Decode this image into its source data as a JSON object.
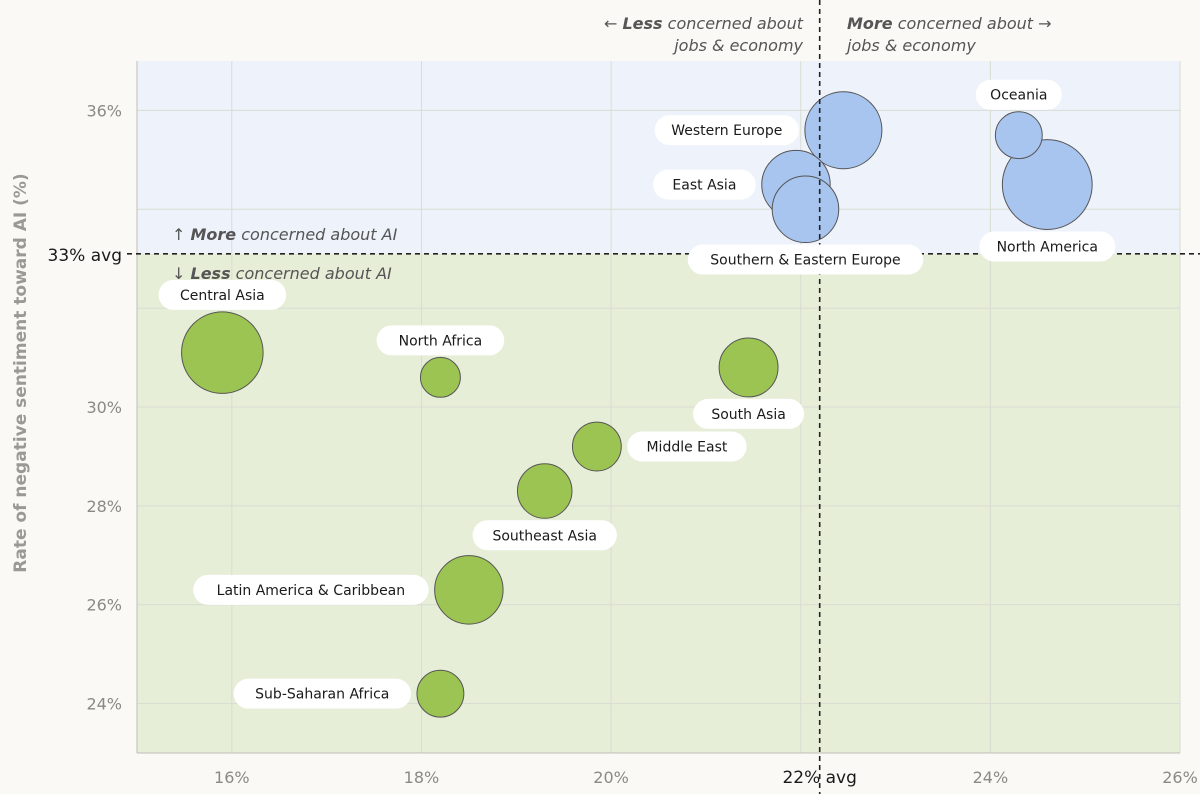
{
  "chart_data": {
    "type": "scatter",
    "ylabel": "Rate of negative sentiment toward AI (%)",
    "xlim": [
      15,
      26
    ],
    "ylim": [
      23,
      37
    ],
    "x_ticks": [
      {
        "value": 16,
        "label": "16%"
      },
      {
        "value": 18,
        "label": "18%"
      },
      {
        "value": 20,
        "label": "20%"
      },
      {
        "value": 24,
        "label": "24%"
      },
      {
        "value": 26,
        "label": "26%"
      }
    ],
    "y_ticks": [
      {
        "value": 24,
        "label": "24%"
      },
      {
        "value": 26,
        "label": "26%"
      },
      {
        "value": 28,
        "label": "28%"
      },
      {
        "value": 30,
        "label": "30%"
      },
      {
        "value": 36,
        "label": "36%"
      }
    ],
    "x_avg": {
      "value": 22.2,
      "label": "22% avg"
    },
    "y_avg": {
      "value": 33.1,
      "label": "33% avg"
    },
    "quadrant_labels": {
      "left_top_arrow": "← ",
      "left_bold": "Less",
      "left_rest": " concerned about",
      "left_line2": "jobs & economy",
      "right_bold": "More",
      "right_rest": " concerned about →",
      "right_line2": "jobs & economy",
      "up_arrow": "↑ ",
      "up_bold": "More",
      "up_rest": " concerned about AI",
      "down_arrow": "↓ ",
      "down_bold": "Less",
      "down_rest": " concerned about AI"
    },
    "colors": {
      "high_bg": "#eef3fb",
      "low_bg": "#e7eed8",
      "high_fill": "#a8c5ef",
      "low_fill": "#9cc452",
      "stroke": "#555555"
    },
    "points": [
      {
        "name": "Western Europe",
        "x": 22.45,
        "y": 35.6,
        "size": 9,
        "group": "high",
        "label_pos": "left"
      },
      {
        "name": "East Asia",
        "x": 21.95,
        "y": 34.5,
        "size": 6.5,
        "group": "high",
        "label_pos": "left"
      },
      {
        "name": "Southern & Eastern Europe",
        "x": 22.05,
        "y": 34.0,
        "size": 6,
        "group": "high",
        "label_pos": "below"
      },
      {
        "name": "Oceania",
        "x": 24.3,
        "y": 35.5,
        "size": 2,
        "group": "high",
        "label_pos": "above"
      },
      {
        "name": "North America",
        "x": 24.6,
        "y": 34.5,
        "size": 13.5,
        "group": "high",
        "label_pos": "below"
      },
      {
        "name": "Central Asia",
        "x": 15.9,
        "y": 31.1,
        "size": 10.5,
        "group": "low",
        "label_pos": "above"
      },
      {
        "name": "North Africa",
        "x": 18.2,
        "y": 30.6,
        "size": 1.1,
        "group": "low",
        "label_pos": "above"
      },
      {
        "name": "South Asia",
        "x": 21.45,
        "y": 30.8,
        "size": 4.2,
        "group": "low",
        "label_pos": "below"
      },
      {
        "name": "Middle East",
        "x": 19.85,
        "y": 29.2,
        "size": 2.3,
        "group": "low",
        "label_pos": "right"
      },
      {
        "name": "Southeast Asia",
        "x": 19.3,
        "y": 28.3,
        "size": 3.3,
        "group": "low",
        "label_pos": "below"
      },
      {
        "name": "Latin America & Caribbean",
        "x": 18.5,
        "y": 26.3,
        "size": 6.5,
        "group": "low",
        "label_pos": "left"
      },
      {
        "name": "Sub-Saharan Africa",
        "x": 18.2,
        "y": 24.2,
        "size": 2,
        "group": "low",
        "label_pos": "left"
      }
    ]
  }
}
